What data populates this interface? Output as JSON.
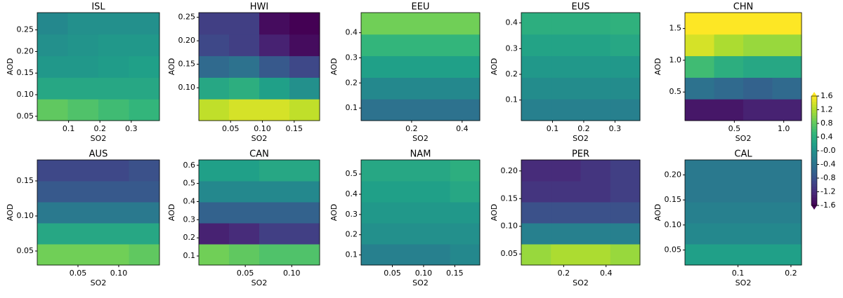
{
  "chart_data": {
    "type": "contour",
    "colormap": "viridis",
    "colorbar": {
      "lim": [
        -1.6,
        1.6
      ],
      "ticks": [
        1.6,
        1.2,
        0.8,
        0.4,
        {
          "value": 0,
          "label": "-0.0"
        },
        -0.4,
        -0.8,
        -1.2,
        -1.6
      ]
    },
    "panels": [
      {
        "title": "ISL",
        "xlabel": "SO2",
        "ylabel": "AOD",
        "xlim": [
          0,
          0.39
        ],
        "ylim": [
          0.04,
          0.29
        ],
        "xticks": [
          0.1,
          0.2,
          0.3
        ],
        "yticks": [
          0.05,
          {
            "value": 0.1,
            "label": "0.10"
          },
          0.15,
          {
            "value": 0.2,
            "label": "0.20"
          },
          0.25
        ],
        "z": [
          [
            0.8,
            0.7,
            0.6,
            0.5
          ],
          [
            0.3,
            0.3,
            0.3,
            0.3
          ],
          [
            0.1,
            0.1,
            0.15,
            0.2
          ],
          [
            0.0,
            0.05,
            0.1,
            0.1
          ],
          [
            -0.1,
            0.0,
            0.0,
            0.0
          ]
        ]
      },
      {
        "title": "HWI",
        "xlabel": "SO2",
        "ylabel": "AOD",
        "xlim": [
          0,
          0.19
        ],
        "ylim": [
          0.03,
          0.26
        ],
        "xticks": [
          0.05,
          {
            "value": 0.1,
            "label": "0.10"
          },
          0.15
        ],
        "yticks": [
          {
            "value": 0.1,
            "label": "0.10"
          },
          0.15,
          {
            "value": 0.2,
            "label": "0.20"
          },
          0.25
        ],
        "z": [
          [
            1.3,
            1.4,
            1.4,
            1.3
          ],
          [
            0.3,
            0.4,
            0.2,
            0.0
          ],
          [
            -0.5,
            -0.4,
            -0.7,
            -0.9
          ],
          [
            -0.9,
            -1.0,
            -1.3,
            -1.5
          ],
          [
            -1.0,
            -1.0,
            -1.5,
            -1.6
          ]
        ]
      },
      {
        "title": "EEU",
        "xlabel": "SO2",
        "ylabel": "AOD",
        "xlim": [
          0,
          0.47
        ],
        "ylim": [
          0.05,
          0.48
        ],
        "xticks": [
          0.2,
          0.4
        ],
        "yticks": [
          0.1,
          0.2,
          0.3,
          0.4
        ],
        "z": [
          [
            -0.4,
            -0.4,
            -0.4,
            -0.4
          ],
          [
            -0.1,
            -0.1,
            -0.1,
            -0.1
          ],
          [
            0.2,
            0.2,
            0.2,
            0.2
          ],
          [
            0.5,
            0.5,
            0.5,
            0.5
          ],
          [
            0.9,
            0.9,
            0.9,
            0.9
          ]
        ]
      },
      {
        "title": "EUS",
        "xlabel": "SO2",
        "ylabel": "AOD",
        "xlim": [
          0,
          0.38
        ],
        "ylim": [
          0.02,
          0.44
        ],
        "xticks": [
          0.1,
          0.2,
          0.3
        ],
        "yticks": [
          0.1,
          0.2,
          0.3,
          0.4
        ],
        "z": [
          [
            -0.2,
            -0.2,
            -0.2,
            -0.2
          ],
          [
            -0.05,
            -0.05,
            -0.05,
            -0.05
          ],
          [
            0.1,
            0.1,
            0.1,
            0.1
          ],
          [
            0.25,
            0.25,
            0.25,
            0.3
          ],
          [
            0.4,
            0.4,
            0.4,
            0.45
          ]
        ]
      },
      {
        "title": "CHN",
        "xlabel": "SO2",
        "ylabel": "AOD",
        "xlim": [
          0,
          1.18
        ],
        "ylim": [
          0.05,
          1.75
        ],
        "xticks": [
          0.5,
          {
            "value": 1,
            "label": "1.0"
          }
        ],
        "yticks": [
          0.5,
          {
            "value": 1,
            "label": "1.0"
          },
          1.5
        ],
        "z": [
          [
            -1.4,
            -1.4,
            -1.3,
            -1.3
          ],
          [
            -0.4,
            -0.5,
            -0.6,
            -0.5
          ],
          [
            0.6,
            0.4,
            0.3,
            0.3
          ],
          [
            1.4,
            1.2,
            1.1,
            1.1
          ],
          [
            1.6,
            1.6,
            1.6,
            1.6
          ]
        ]
      },
      {
        "title": "AUS",
        "xlabel": "SO2",
        "ylabel": "AOD",
        "xlim": [
          0,
          0.15
        ],
        "ylim": [
          0.03,
          0.18
        ],
        "xticks": [
          0.05,
          {
            "value": 0.1,
            "label": "0.10"
          }
        ],
        "yticks": [
          0.05,
          {
            "value": 0.1,
            "label": "0.10"
          },
          0.15
        ],
        "z": [
          [
            0.9,
            0.9,
            0.9,
            0.8
          ],
          [
            0.3,
            0.3,
            0.3,
            0.3
          ],
          [
            -0.3,
            -0.3,
            -0.3,
            -0.3
          ],
          [
            -0.7,
            -0.7,
            -0.7,
            -0.7
          ],
          [
            -0.9,
            -0.9,
            -0.9,
            -0.8
          ]
        ]
      },
      {
        "title": "CAN",
        "xlabel": "SO2",
        "ylabel": "AOD",
        "xlim": [
          0,
          0.13
        ],
        "ylim": [
          0.05,
          0.63
        ],
        "xticks": [
          0.05,
          {
            "value": 0.1,
            "label": "0.10"
          }
        ],
        "yticks": [
          0.1,
          0.2,
          0.3,
          0.4,
          0.5,
          0.6
        ],
        "z": [
          [
            0.9,
            0.8,
            0.7,
            0.7
          ],
          [
            -1.3,
            -1.2,
            -1.0,
            -1.0
          ],
          [
            -0.6,
            -0.6,
            -0.6,
            -0.6
          ],
          [
            -0.1,
            -0.1,
            -0.1,
            -0.1
          ],
          [
            0.2,
            0.2,
            0.3,
            0.3
          ]
        ]
      },
      {
        "title": "NAM",
        "xlabel": "SO2",
        "ylabel": "AOD",
        "xlim": [
          0,
          0.19
        ],
        "ylim": [
          0.05,
          0.57
        ],
        "xticks": [
          0.05,
          {
            "value": 0.1,
            "label": "0.10"
          },
          0.15
        ],
        "yticks": [
          0.1,
          0.2,
          0.3,
          0.4,
          0.5
        ],
        "z": [
          [
            -0.2,
            -0.2,
            -0.2,
            -0.1
          ],
          [
            0.0,
            0.0,
            0.0,
            0.0
          ],
          [
            0.1,
            0.1,
            0.1,
            0.1
          ],
          [
            0.2,
            0.2,
            0.2,
            0.3
          ],
          [
            0.3,
            0.3,
            0.3,
            0.4
          ]
        ]
      },
      {
        "title": "PER",
        "xlabel": "SO2",
        "ylabel": "AOD",
        "xlim": [
          0,
          0.56
        ],
        "ylim": [
          0.03,
          0.22
        ],
        "xticks": [
          0.2,
          0.4
        ],
        "yticks": [
          0.05,
          {
            "value": 0.1,
            "label": "0.10"
          },
          0.15,
          {
            "value": 0.2,
            "label": "0.20"
          }
        ],
        "z": [
          [
            1.1,
            1.2,
            1.2,
            1.1
          ],
          [
            -0.2,
            -0.2,
            -0.2,
            -0.2
          ],
          [
            -0.8,
            -0.8,
            -0.8,
            -0.8
          ],
          [
            -1.1,
            -1.1,
            -1.1,
            -1.0
          ],
          [
            -1.2,
            -1.2,
            -1.1,
            -1.0
          ]
        ]
      },
      {
        "title": "CAL",
        "xlabel": "SO2",
        "ylabel": "AOD",
        "xlim": [
          0,
          0.22
        ],
        "ylim": [
          0.02,
          0.23
        ],
        "xticks": [
          0.1,
          0.2
        ],
        "yticks": [
          0.05,
          {
            "value": 0.1,
            "label": "0.10"
          },
          0.15,
          {
            "value": 0.2,
            "label": "0.20"
          }
        ],
        "z": [
          [
            0.2,
            0.2,
            0.2,
            0.2
          ],
          [
            -0.1,
            -0.1,
            -0.1,
            -0.1
          ],
          [
            -0.2,
            -0.2,
            -0.2,
            -0.2
          ],
          [
            -0.3,
            -0.3,
            -0.3,
            -0.3
          ],
          [
            -0.3,
            -0.3,
            -0.3,
            -0.3
          ]
        ]
      }
    ]
  }
}
